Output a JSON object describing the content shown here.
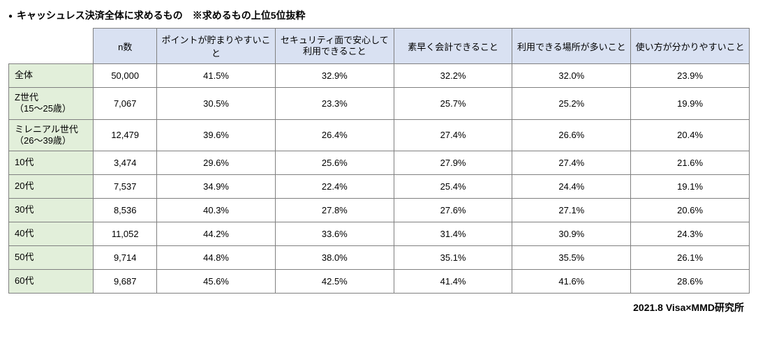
{
  "title": "キャッシュレス決済全体に求めるもの　※求めるもの上位5位抜粋",
  "columns": {
    "n": "n数",
    "c1": "ポイントが貯まりやすいこと",
    "c2": "セキュリティ面で安心して\n利用できること",
    "c3": "素早く会計できること",
    "c4": "利用できる場所が多いこと",
    "c5": "使い方が分かりやすいこと"
  },
  "rows": [
    {
      "label": "全体",
      "n": "50,000",
      "v": [
        "41.5%",
        "32.9%",
        "32.2%",
        "32.0%",
        "23.9%"
      ]
    },
    {
      "label": "Z世代\n（15～25歳）",
      "n": "7,067",
      "v": [
        "30.5%",
        "23.3%",
        "25.7%",
        "25.2%",
        "19.9%"
      ]
    },
    {
      "label": "ミレニアル世代\n（26～39歳）",
      "n": "12,479",
      "v": [
        "39.6%",
        "26.4%",
        "27.4%",
        "26.6%",
        "20.4%"
      ]
    },
    {
      "label": "10代",
      "n": "3,474",
      "v": [
        "29.6%",
        "25.6%",
        "27.9%",
        "27.4%",
        "21.6%"
      ]
    },
    {
      "label": "20代",
      "n": "7,537",
      "v": [
        "34.9%",
        "22.4%",
        "25.4%",
        "24.4%",
        "19.1%"
      ]
    },
    {
      "label": "30代",
      "n": "8,536",
      "v": [
        "40.3%",
        "27.8%",
        "27.6%",
        "27.1%",
        "20.6%"
      ]
    },
    {
      "label": "40代",
      "n": "11,052",
      "v": [
        "44.2%",
        "33.6%",
        "31.4%",
        "30.9%",
        "24.3%"
      ]
    },
    {
      "label": "50代",
      "n": "9,714",
      "v": [
        "44.8%",
        "38.0%",
        "35.1%",
        "35.5%",
        "26.1%"
      ]
    },
    {
      "label": "60代",
      "n": "9,687",
      "v": [
        "45.6%",
        "42.5%",
        "41.4%",
        "41.6%",
        "28.6%"
      ]
    }
  ],
  "footer": "2021.8 Visa×MMD研究所"
}
